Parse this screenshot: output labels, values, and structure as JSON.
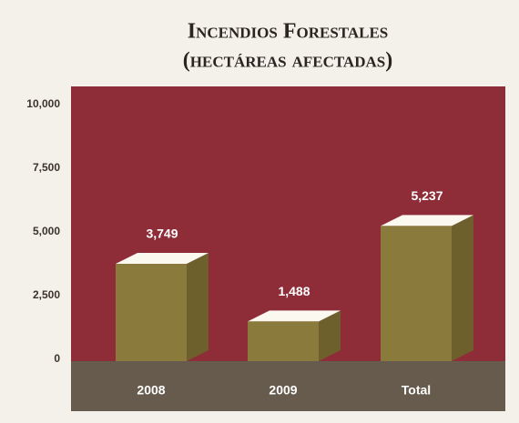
{
  "chart_data": {
    "type": "bar3d",
    "title": "Incendios Forestales",
    "subtitle": "(hectáreas afectadas)",
    "categories": [
      "2008",
      "2009",
      "Total"
    ],
    "values": [
      3749,
      1488,
      5237
    ],
    "value_labels": [
      "3,749",
      "1,488",
      "5,237"
    ],
    "color": "#8a7a3c",
    "ylim": [
      0,
      10000
    ],
    "yticks": [
      0,
      {
        "value": 2500,
        "label": "2,500"
      },
      {
        "value": 5000,
        "label": "5,000"
      },
      {
        "value": 7500,
        "label": "7,500"
      },
      {
        "value": 10000,
        "label": "10,000"
      }
    ],
    "grid": false
  }
}
